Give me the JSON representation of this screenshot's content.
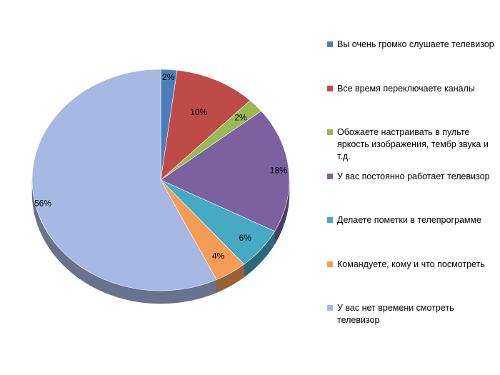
{
  "chart_data": {
    "type": "pie",
    "title": "",
    "legend_position": "right",
    "slices": [
      {
        "label": "Вы очень громко слушаете телевизор",
        "value": 2,
        "value_label": "2%",
        "color": "#4a7ebb"
      },
      {
        "label": "Все время переключаете каналы",
        "value": 10,
        "value_label": "10%",
        "color": "#be4b48"
      },
      {
        "label": "Обожаете настраивать в пульте яркость изображения, тембр звука и т.д.",
        "value": 2,
        "value_label": "2%",
        "color": "#98b954"
      },
      {
        "label": "У вас постоянно работает телевизор",
        "value": 18,
        "value_label": "18%",
        "color": "#7d60a0"
      },
      {
        "label": "Делаете пометки в телепрограмме",
        "value": 6,
        "value_label": "6%",
        "color": "#46aac4"
      },
      {
        "label": "Командуете, кому и что посмотреть",
        "value": 4,
        "value_label": "4%",
        "color": "#f59d56"
      },
      {
        "label": "У вас нет времени смотреть телевизор",
        "value": 56,
        "value_label": "56%",
        "color": "#a7b9e3"
      }
    ]
  }
}
